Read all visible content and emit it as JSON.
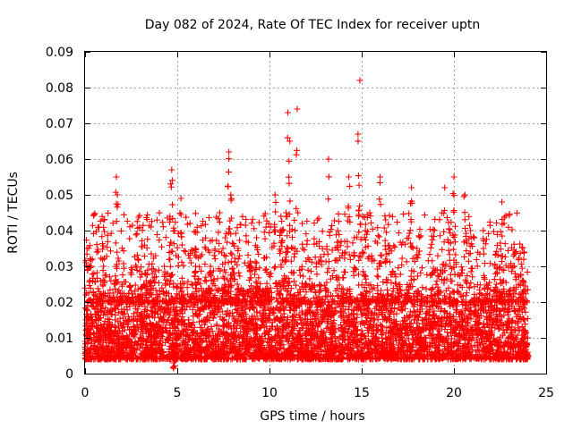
{
  "chart_data": {
    "type": "scatter",
    "title": "Day 082 of 2024, Rate Of TEC Index for receiver uptn",
    "xlabel": "GPS time / hours",
    "ylabel": "ROTI / TECUs",
    "xlim": [
      0,
      25
    ],
    "ylim": [
      0,
      0.09
    ],
    "xticks": [
      0,
      5,
      10,
      15,
      20,
      25
    ],
    "xtick_labels": [
      "0",
      "5",
      "10",
      "15",
      "20",
      "25"
    ],
    "yticks": [
      0,
      0.01,
      0.02,
      0.03,
      0.04,
      0.05,
      0.06,
      0.07,
      0.08,
      0.09
    ],
    "ytick_labels": [
      "0",
      "0.01",
      "0.02",
      "0.03",
      "0.04",
      "0.05",
      "0.06",
      "0.07",
      "0.08",
      "0.09"
    ],
    "grid": true,
    "marker": "+",
    "color": "#ff0000",
    "series": [
      {
        "name": "ROTI",
        "x": [
          0.0,
          0.1,
          0.15,
          0.25,
          0.3,
          0.5,
          0.7,
          1.0,
          1.3,
          1.6,
          1.7,
          1.75,
          1.8,
          2.0,
          2.3,
          2.6,
          3.0,
          3.3,
          3.6,
          4.0,
          4.3,
          4.6,
          4.7,
          4.8,
          5.0,
          5.2,
          5.3,
          5.6,
          6.0,
          6.4,
          6.8,
          7.0,
          7.3,
          7.6,
          7.8,
          7.9,
          8.1,
          8.3,
          8.5,
          8.8,
          9.0,
          9.3,
          9.6,
          10.0,
          10.3,
          10.6,
          10.9,
          11.0,
          11.1,
          11.3,
          11.5,
          11.8,
          12.0,
          12.3,
          12.6,
          12.9,
          13.2,
          13.4,
          13.7,
          14.0,
          14.3,
          14.6,
          14.8,
          14.9,
          15.0,
          15.2,
          15.5,
          15.8,
          16.0,
          16.3,
          16.6,
          17.0,
          17.4,
          17.7,
          18.0,
          18.4,
          18.8,
          19.2,
          19.5,
          19.8,
          20.0,
          20.3,
          20.6,
          20.9,
          21.3,
          21.6,
          22.0,
          22.3,
          22.6,
          22.9,
          23.2,
          23.5,
          23.8,
          24.0
        ],
        "y": [
          0.009,
          0.035,
          0.012,
          0.03,
          0.01,
          0.011,
          0.02,
          0.03,
          0.012,
          0.018,
          0.055,
          0.05,
          0.012,
          0.025,
          0.01,
          0.011,
          0.027,
          0.012,
          0.022,
          0.013,
          0.03,
          0.044,
          0.057,
          0.003,
          0.01,
          0.049,
          0.02,
          0.015,
          0.035,
          0.012,
          0.03,
          0.02,
          0.045,
          0.038,
          0.062,
          0.05,
          0.015,
          0.035,
          0.02,
          0.012,
          0.03,
          0.038,
          0.015,
          0.012,
          0.05,
          0.04,
          0.045,
          0.073,
          0.065,
          0.02,
          0.074,
          0.035,
          0.012,
          0.025,
          0.043,
          0.015,
          0.06,
          0.02,
          0.04,
          0.012,
          0.055,
          0.038,
          0.067,
          0.082,
          0.012,
          0.04,
          0.02,
          0.01,
          0.055,
          0.032,
          0.012,
          0.011,
          0.02,
          0.052,
          0.035,
          0.015,
          0.028,
          0.012,
          0.052,
          0.03,
          0.055,
          0.011,
          0.05,
          0.04,
          0.015,
          0.035,
          0.012,
          0.025,
          0.048,
          0.02,
          0.01,
          0.025,
          0.034,
          0.01
        ],
        "dense_band": {
          "description": "thousands of '+' markers between roughly 0.005 and 0.02 across the full day",
          "y_low": 0.004,
          "y_high": 0.02,
          "x_start": 0.0,
          "x_end": 24.0
        }
      }
    ]
  }
}
